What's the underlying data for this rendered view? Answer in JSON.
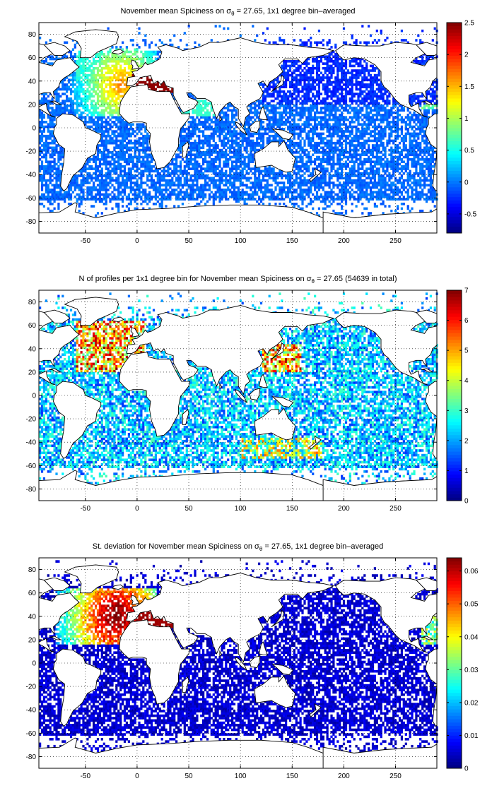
{
  "chart_data": [
    {
      "type": "heatmap",
      "title": "November mean Spiciness on σθ = 27.65, 1x1 degree bin–averaged",
      "title_parts": {
        "prefix": "November mean Spiciness on ",
        "sigma": "σ",
        "sub": "θ",
        "suffix": " = 27.65, 1x1 degree bin–averaged"
      },
      "xlabel": "",
      "ylabel": "",
      "xlim": [
        -95,
        290
      ],
      "ylim": [
        -90,
        90
      ],
      "xticks": [
        -50,
        0,
        50,
        100,
        150,
        200,
        250
      ],
      "yticks": [
        -80,
        -60,
        -40,
        -20,
        0,
        20,
        40,
        60,
        80
      ],
      "grid": true,
      "colormap": "jet",
      "colorbar": {
        "min": -0.8,
        "max": 2.5,
        "ticks": [
          -0.5,
          0,
          0.5,
          1,
          1.5,
          2,
          2.5
        ],
        "tick_labels": [
          "-0.5",
          "0",
          "0.5",
          "1",
          "1.5",
          "2",
          "2.5"
        ]
      },
      "field": "spice"
    },
    {
      "type": "heatmap",
      "title": "N of profiles per 1x1 degree bin for November mean Spiciness on σθ = 27.65 (54639 in total)",
      "title_parts": {
        "prefix": "N of profiles per 1x1 degree bin for November mean Spiciness on ",
        "sigma": "σ",
        "sub": "θ",
        "suffix": " = 27.65 (54639 in total)"
      },
      "xlabel": "",
      "ylabel": "",
      "xlim": [
        -95,
        290
      ],
      "ylim": [
        -90,
        90
      ],
      "xticks": [
        -50,
        0,
        50,
        100,
        150,
        200,
        250
      ],
      "yticks": [
        -80,
        -60,
        -40,
        -20,
        0,
        20,
        40,
        60,
        80
      ],
      "grid": true,
      "colormap": "jet",
      "colorbar": {
        "min": 0,
        "max": 7,
        "ticks": [
          0,
          1,
          2,
          3,
          4,
          5,
          6,
          7
        ],
        "tick_labels": [
          "0",
          "1",
          "2",
          "3",
          "4",
          "5",
          "6",
          "7"
        ]
      },
      "total_profiles": 54639,
      "field": "count"
    },
    {
      "type": "heatmap",
      "title": "St. deviation for November mean Spiciness on σθ = 27.65, 1x1 degree bin–averaged",
      "title_parts": {
        "prefix": "St. deviation for November mean Spiciness on ",
        "sigma": "σ",
        "sub": "θ",
        "suffix": " = 27.65, 1x1 degree bin–averaged"
      },
      "xlabel": "",
      "ylabel": "",
      "xlim": [
        -95,
        290
      ],
      "ylim": [
        -90,
        90
      ],
      "xticks": [
        -50,
        0,
        50,
        100,
        150,
        200,
        250
      ],
      "yticks": [
        -80,
        -60,
        -40,
        -20,
        0,
        20,
        40,
        60,
        80
      ],
      "grid": true,
      "colormap": "jet",
      "colorbar": {
        "min": 0,
        "max": 0.064,
        "ticks": [
          0,
          0.01,
          0.02,
          0.03,
          0.04,
          0.05,
          0.06
        ],
        "tick_labels": [
          "0",
          "0.01",
          "0.02",
          "0.03",
          "0.04",
          "0.05",
          "0.06"
        ]
      },
      "field": "std"
    }
  ]
}
